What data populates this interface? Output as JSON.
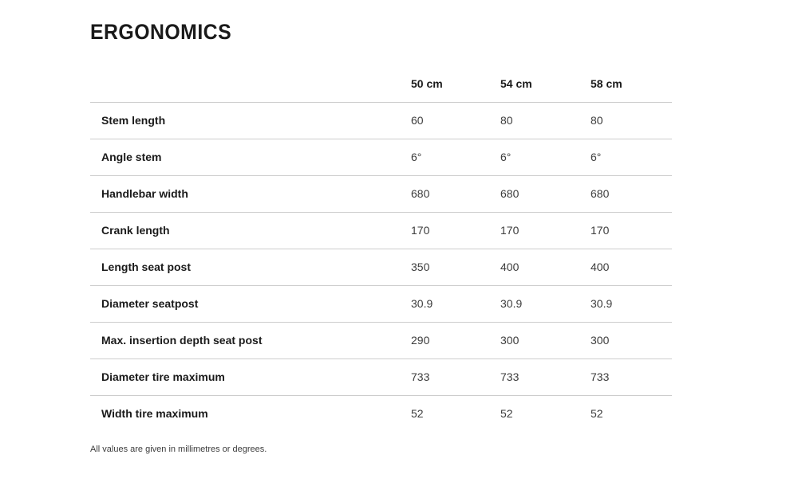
{
  "page": {
    "title": "ERGONOMICS",
    "footnote": "All values are given in millimetres or degrees."
  },
  "table": {
    "columns": [
      "50 cm",
      "54 cm",
      "58 cm"
    ],
    "rows": [
      {
        "label": "Stem length",
        "values": [
          "60",
          "80",
          "80"
        ]
      },
      {
        "label": "Angle stem",
        "values": [
          "6°",
          "6°",
          "6°"
        ]
      },
      {
        "label": "Handlebar width",
        "values": [
          "680",
          "680",
          "680"
        ]
      },
      {
        "label": "Crank length",
        "values": [
          "170",
          "170",
          "170"
        ]
      },
      {
        "label": "Length seat post",
        "values": [
          "350",
          "400",
          "400"
        ]
      },
      {
        "label": "Diameter seatpost",
        "values": [
          "30.9",
          "30.9",
          "30.9"
        ]
      },
      {
        "label": "Max. insertion depth seat post",
        "values": [
          "290",
          "300",
          "300"
        ]
      },
      {
        "label": "Diameter tire maximum",
        "values": [
          "733",
          "733",
          "733"
        ]
      },
      {
        "label": "Width tire maximum",
        "values": [
          "52",
          "52",
          "52"
        ]
      }
    ]
  },
  "colors": {
    "background": "#ffffff",
    "heading_text": "#1a1a1a",
    "value_text": "#3c3c3c",
    "divider": "#cdcdcd"
  }
}
